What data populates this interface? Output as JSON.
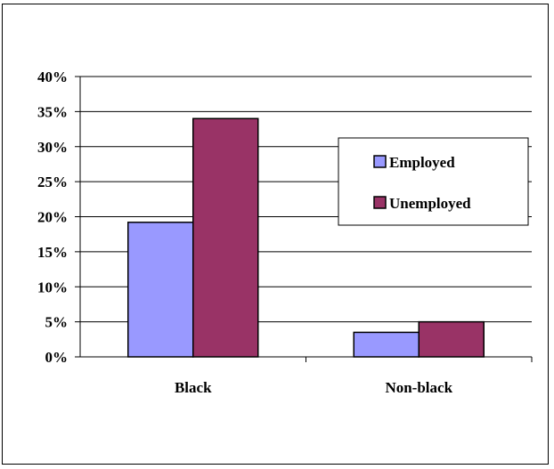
{
  "chart_data": {
    "type": "bar",
    "title": "",
    "xlabel": "",
    "ylabel": "",
    "categories": [
      "Black",
      "Non-black"
    ],
    "series": [
      {
        "name": "Employed",
        "values": [
          19.2,
          3.5
        ],
        "color": "#9999FF"
      },
      {
        "name": "Unemployed",
        "values": [
          34,
          5
        ],
        "color": "#993366"
      }
    ],
    "ylim": [
      0,
      40
    ],
    "yticks": [
      0,
      5,
      10,
      15,
      20,
      25,
      30,
      35,
      40
    ],
    "ytick_labels": [
      "0%",
      "5%",
      "10%",
      "15%",
      "20%",
      "25%",
      "30%",
      "35%",
      "40%"
    ],
    "grid": true,
    "legend_position": "right"
  }
}
